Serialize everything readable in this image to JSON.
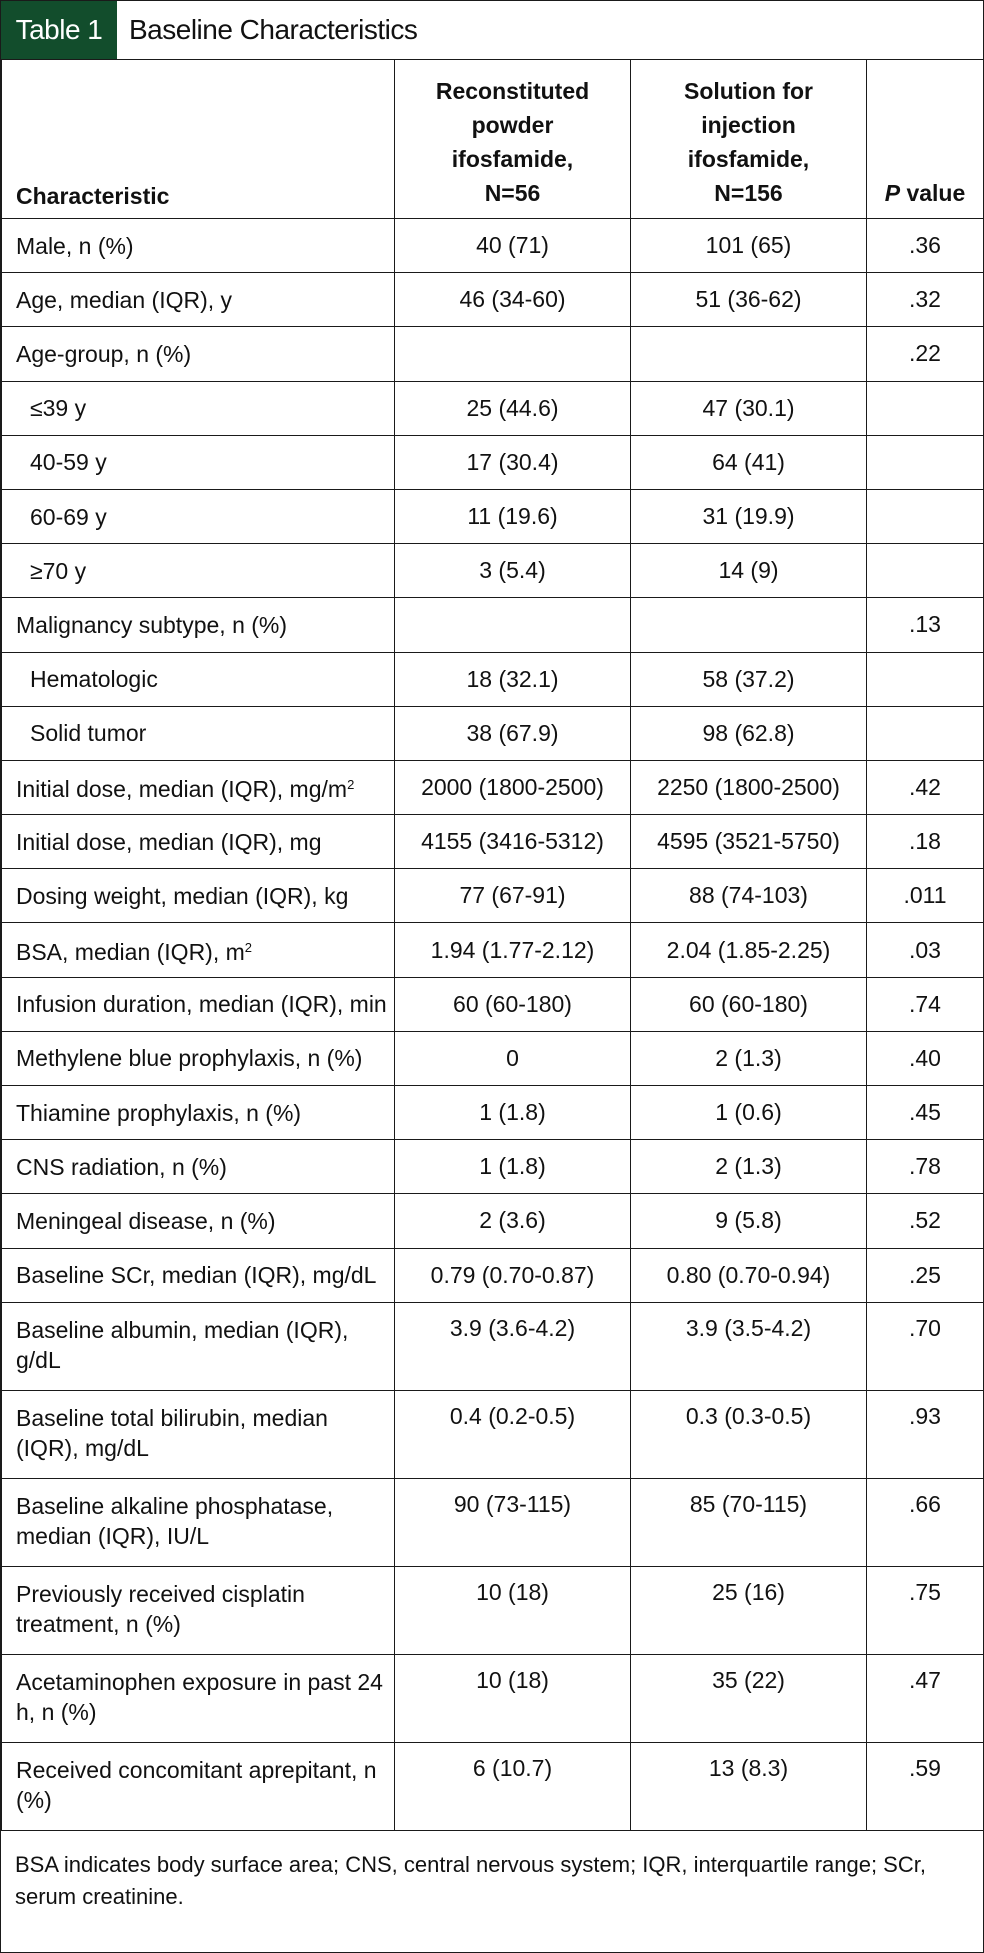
{
  "title": {
    "label": "Table 1",
    "text": "Baseline Characteristics"
  },
  "columns": {
    "characteristic": "Characteristic",
    "powder": [
      "Reconstituted",
      "powder",
      "ifosfamide,",
      "N=56"
    ],
    "solution": [
      "Solution for",
      "injection",
      "ifosfamide,",
      "N=156"
    ],
    "p_italic": "P",
    "p_rest": " value"
  },
  "rows": [
    {
      "label": "Male, n (%)",
      "powder": "40 (71)",
      "solution": "101 (65)",
      "p": ".36"
    },
    {
      "label": "Age, median (IQR), y",
      "powder": "46 (34-60)",
      "solution": "51 (36-62)",
      "p": ".32"
    },
    {
      "label": "Age-group, n (%)",
      "powder": "",
      "solution": "",
      "p": ".22"
    },
    {
      "label": "≤39 y",
      "powder": "25 (44.6)",
      "solution": "47 (30.1)",
      "p": ""
    },
    {
      "label": "40-59 y",
      "powder": "17 (30.4)",
      "solution": "64 (41)",
      "p": ""
    },
    {
      "label": "60-69 y",
      "powder": "11 (19.6)",
      "solution": "31 (19.9)",
      "p": ""
    },
    {
      "label": "≥70 y",
      "powder": "3 (5.4)",
      "solution": "14 (9)",
      "p": ""
    },
    {
      "label": "Malignancy subtype, n (%)",
      "powder": "",
      "solution": "",
      "p": ".13"
    },
    {
      "label": "Hematologic",
      "powder": "18 (32.1)",
      "solution": "58 (37.2)",
      "p": ""
    },
    {
      "label": "Solid tumor",
      "powder": "38 (67.9)",
      "solution": "98 (62.8)",
      "p": ""
    },
    {
      "label": "Initial dose, median (IQR), mg/m",
      "sup": "2",
      "powder": "2000 (1800-2500)",
      "solution": "2250 (1800-2500)",
      "p": ".42"
    },
    {
      "label": "Initial dose, median (IQR), mg",
      "powder": "4155 (3416-5312)",
      "solution": "4595 (3521-5750)",
      "p": ".18"
    },
    {
      "label": "Dosing weight, median (IQR), kg",
      "powder": "77 (67-91)",
      "solution": "88 (74-103)",
      "p": ".011"
    },
    {
      "label": "BSA, median (IQR), m",
      "sup": "2",
      "powder": "1.94 (1.77-2.12)",
      "solution": "2.04 (1.85-2.25)",
      "p": ".03"
    },
    {
      "label": "Infusion duration, median (IQR), min",
      "powder": "60 (60-180)",
      "solution": "60 (60-180)",
      "p": ".74"
    },
    {
      "label": "Methylene blue prophylaxis, n (%)",
      "powder": "0",
      "solution": "2 (1.3)",
      "p": ".40"
    },
    {
      "label": "Thiamine prophylaxis, n (%)",
      "powder": "1 (1.8)",
      "solution": "1 (0.6)",
      "p": ".45"
    },
    {
      "label": "CNS radiation, n (%)",
      "powder": "1 (1.8)",
      "solution": "2 (1.3)",
      "p": ".78"
    },
    {
      "label": "Meningeal disease, n (%)",
      "powder": "2 (3.6)",
      "solution": "9 (5.8)",
      "p": ".52"
    },
    {
      "label": "Baseline SCr, median (IQR), mg/dL",
      "powder": "0.79 (0.70-0.87)",
      "solution": "0.80 (0.70-0.94)",
      "p": ".25"
    },
    {
      "label": "Baseline albumin, median (IQR), g/dL",
      "powder": "3.9 (3.6-4.2)",
      "solution": "3.9 (3.5-4.2)",
      "p": ".70"
    },
    {
      "label": "Baseline total bilirubin, median (IQR), mg/dL",
      "powder": "0.4 (0.2-0.5)",
      "solution": "0.3 (0.3-0.5)",
      "p": ".93"
    },
    {
      "label": "Baseline alkaline phosphatase, median (IQR), IU/L",
      "powder": "90 (73-115)",
      "solution": "85 (70-115)",
      "p": ".66"
    },
    {
      "label": "Previously received cisplatin treatment, n (%)",
      "powder": "10 (18)",
      "solution": "25 (16)",
      "p": ".75"
    },
    {
      "label": "Acetaminophen exposure in past 24 h, n (%)",
      "powder": "10 (18)",
      "solution": "35 (22)",
      "p": ".47"
    },
    {
      "label": "Received concomitant aprepitant, n (%)",
      "powder": "6 (10.7)",
      "solution": "13 (8.3)",
      "p": ".59"
    }
  ],
  "footnote": "BSA indicates body surface area; CNS, central nervous system; IQR, interquartile range; SCr, serum creatinine.",
  "colors": {
    "title_label_bg": "#124d2c",
    "border": "#1a1a1a"
  }
}
